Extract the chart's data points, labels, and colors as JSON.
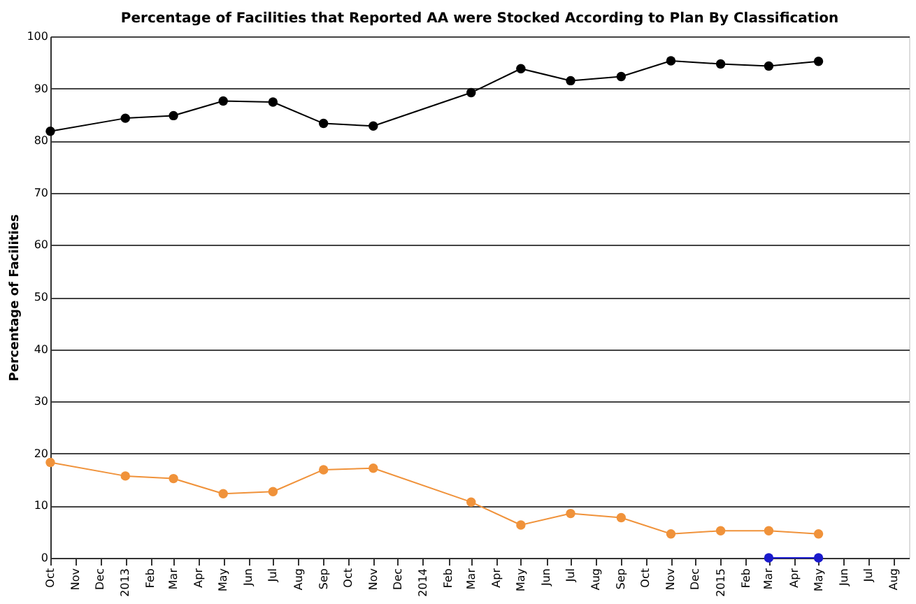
{
  "chart_data": {
    "type": "line",
    "title": "Percentage of Facilities that Reported AA were Stocked According to Plan By Classification",
    "ylabel": "Percentage of Facilities",
    "xlim": [
      "2012-10-01",
      "2015-08-20"
    ],
    "xticks": [
      {
        "value": "2012-10-01",
        "label": "Oct"
      },
      {
        "value": "2012-11-01",
        "label": "Nov"
      },
      {
        "value": "2012-12-01",
        "label": "Dec"
      },
      {
        "value": "2013-01-01",
        "label": "2013"
      },
      {
        "value": "2013-02-01",
        "label": "Feb"
      },
      {
        "value": "2013-03-01",
        "label": "Mar"
      },
      {
        "value": "2013-04-01",
        "label": "Apr"
      },
      {
        "value": "2013-05-01",
        "label": "May"
      },
      {
        "value": "2013-06-01",
        "label": "Jun"
      },
      {
        "value": "2013-07-01",
        "label": "Jul"
      },
      {
        "value": "2013-08-01",
        "label": "Aug"
      },
      {
        "value": "2013-09-01",
        "label": "Sep"
      },
      {
        "value": "2013-10-01",
        "label": "Oct"
      },
      {
        "value": "2013-11-01",
        "label": "Nov"
      },
      {
        "value": "2013-12-01",
        "label": "Dec"
      },
      {
        "value": "2014-01-01",
        "label": "2014"
      },
      {
        "value": "2014-02-01",
        "label": "Feb"
      },
      {
        "value": "2014-03-01",
        "label": "Mar"
      },
      {
        "value": "2014-04-01",
        "label": "Apr"
      },
      {
        "value": "2014-05-01",
        "label": "May"
      },
      {
        "value": "2014-06-01",
        "label": "Jun"
      },
      {
        "value": "2014-07-01",
        "label": "Jul"
      },
      {
        "value": "2014-08-01",
        "label": "Aug"
      },
      {
        "value": "2014-09-01",
        "label": "Sep"
      },
      {
        "value": "2014-10-01",
        "label": "Oct"
      },
      {
        "value": "2014-11-01",
        "label": "Nov"
      },
      {
        "value": "2014-12-01",
        "label": "Dec"
      },
      {
        "value": "2015-01-01",
        "label": "2015"
      },
      {
        "value": "2015-02-01",
        "label": "Feb"
      },
      {
        "value": "2015-03-01",
        "label": "Mar"
      },
      {
        "value": "2015-04-01",
        "label": "Apr"
      },
      {
        "value": "2015-05-01",
        "label": "May"
      },
      {
        "value": "2015-06-01",
        "label": "Jun"
      },
      {
        "value": "2015-07-01",
        "label": "Jul"
      },
      {
        "value": "2015-08-01",
        "label": "Aug"
      }
    ],
    "ylim": [
      0,
      100
    ],
    "yticks": [
      0,
      10,
      20,
      30,
      40,
      50,
      60,
      70,
      80,
      90,
      100
    ],
    "grid": "y",
    "marker": "circle",
    "legend": false,
    "series": [
      {
        "color": "#000000",
        "x": [
          "2012-10-01",
          "2013-01-01",
          "2013-03-01",
          "2013-05-01",
          "2013-07-01",
          "2013-09-01",
          "2013-11-01",
          "2014-03-01",
          "2014-05-01",
          "2014-07-01",
          "2014-09-01",
          "2014-11-01",
          "2015-01-01",
          "2015-03-01",
          "2015-05-01"
        ],
        "values": [
          81.8,
          84.3,
          84.8,
          87.6,
          87.4,
          83.3,
          82.8,
          89.2,
          93.8,
          91.5,
          92.3,
          95.3,
          94.7,
          94.3,
          95.2
        ]
      },
      {
        "color": "#f0923a",
        "x": [
          "2012-10-01",
          "2013-01-01",
          "2013-03-01",
          "2013-05-01",
          "2013-07-01",
          "2013-09-01",
          "2013-11-01",
          "2014-03-01",
          "2014-05-01",
          "2014-07-01",
          "2014-09-01",
          "2014-11-01",
          "2015-01-01",
          "2015-03-01",
          "2015-05-01"
        ],
        "values": [
          18.3,
          15.7,
          15.2,
          12.3,
          12.7,
          16.9,
          17.2,
          10.7,
          6.3,
          8.5,
          7.7,
          4.6,
          5.2,
          5.2,
          4.6
        ]
      },
      {
        "color": "#1a1acc",
        "x": [
          "2015-03-01",
          "2015-05-01"
        ],
        "values": [
          0,
          0
        ]
      }
    ]
  }
}
